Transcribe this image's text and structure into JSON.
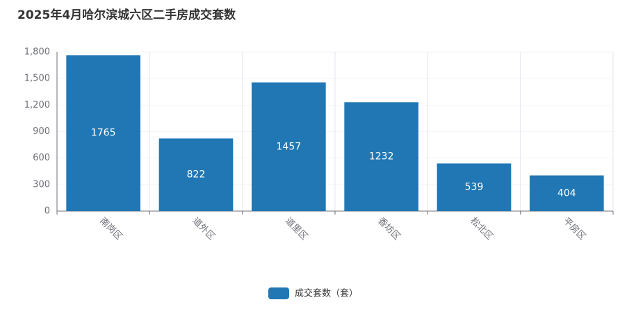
{
  "chart_data": {
    "type": "bar",
    "title": "2025年4月哈尔滨城六区二手房成交套数",
    "categories": [
      "南岗区",
      "道外区",
      "道里区",
      "香坊区",
      "松北区",
      "平房区"
    ],
    "series": [
      {
        "name": "成交套数（套）",
        "color": "#2077b4",
        "values": [
          1765,
          822,
          1457,
          1232,
          539,
          404
        ]
      }
    ],
    "ylim": [
      0,
      1800
    ],
    "yticks": [
      0,
      300,
      600,
      900,
      {
        "value": 1200,
        "label": "1,200"
      },
      {
        "value": 1500,
        "label": "1,500"
      },
      {
        "value": 1800,
        "label": "1,800"
      }
    ],
    "grid": true,
    "legend": "bottom"
  }
}
